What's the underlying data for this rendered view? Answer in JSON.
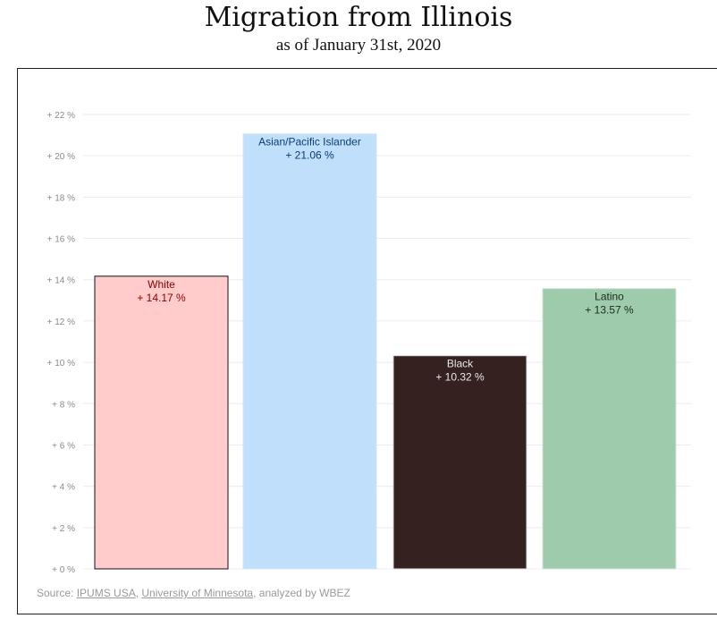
{
  "header": {
    "title": "Migration from Illinois",
    "subtitle": "as of January 31st, 2020"
  },
  "chart_data": {
    "type": "bar",
    "categories": [
      "White",
      "Asian/Pacific Islander",
      "Black",
      "Latino"
    ],
    "values": [
      14.17,
      21.06,
      10.32,
      13.57
    ],
    "value_labels": [
      "+ 14.17 %",
      "+ 21.06 %",
      "+ 10.32 %",
      "+ 13.57 %"
    ],
    "ylim": [
      0,
      22
    ],
    "yticks": [
      0,
      2,
      4,
      6,
      8,
      10,
      12,
      14,
      16,
      18,
      20,
      22
    ],
    "ytick_labels": [
      "+ 0 %",
      "+ 2 %",
      "+ 4 %",
      "+ 6 %",
      "+ 8 %",
      "+ 10 %",
      "+ 12 %",
      "+ 14 %",
      "+ 16 %",
      "+ 18 %",
      "+ 20 %",
      "+ 22 %"
    ],
    "grid": true,
    "colors": {
      "bars": [
        "#ffcccb",
        "#bfdffb",
        "#352220",
        "#9ecbab"
      ],
      "bar_borders": [
        "#111111",
        "#d2e6f8",
        "#d9d9d9",
        "#cfe5d6"
      ],
      "label_text": [
        "#8b0000",
        "#0b3d78",
        "#e8e8e8",
        "#1b2a1f"
      ]
    }
  },
  "source": {
    "prefix": "Source: ",
    "link1": "IPUMS USA",
    "sep": ", ",
    "link2": "University of Minnesota",
    "suffix": ", analyzed by WBEZ"
  }
}
